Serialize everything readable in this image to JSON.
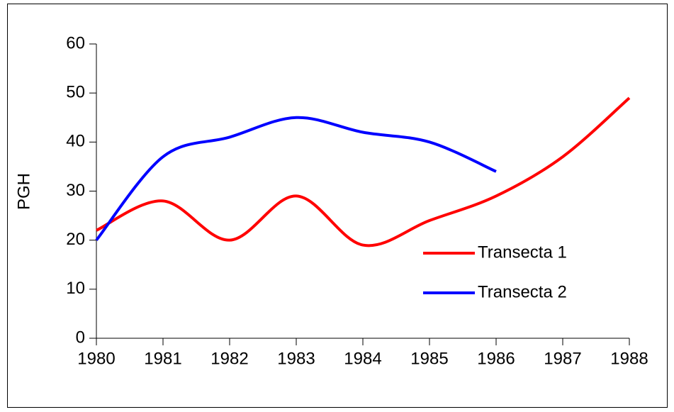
{
  "chart_data": {
    "type": "line",
    "y_label": "PGH",
    "x": [
      1980,
      1981,
      1982,
      1983,
      1984,
      1985,
      1986,
      1987,
      1988
    ],
    "series": [
      {
        "name": "Transecta 1",
        "color": "#ff0000",
        "values": [
          22,
          28,
          20,
          29,
          19,
          24,
          29,
          37,
          49
        ]
      },
      {
        "name": "Transecta 2",
        "color": "#0000ff",
        "values": [
          20,
          37,
          41,
          45,
          42,
          40,
          34,
          null,
          null
        ]
      }
    ],
    "xlim": [
      1980,
      1988
    ],
    "xticks": [
      1980,
      1981,
      1982,
      1983,
      1984,
      1985,
      1986,
      1987,
      1988
    ],
    "ylim": [
      0,
      60
    ],
    "yticks": [
      0,
      10,
      20,
      30,
      40,
      50,
      60
    ],
    "legend": "right"
  }
}
